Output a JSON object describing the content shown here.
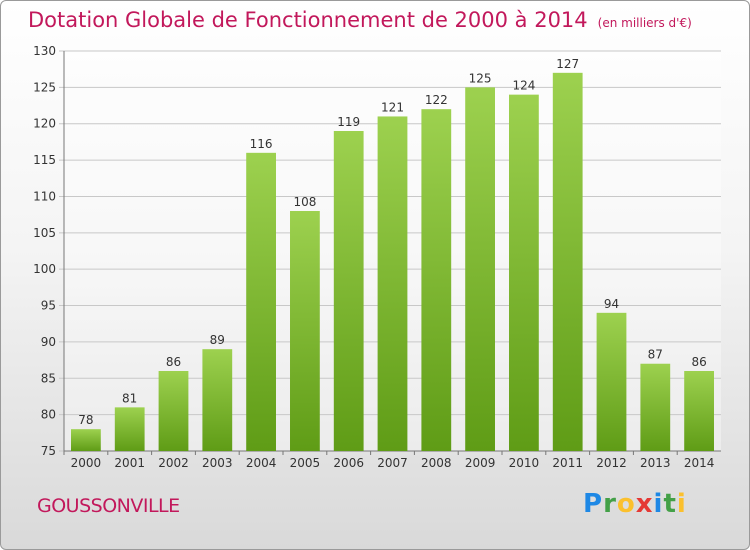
{
  "header": {
    "title": "Dotation Globale de Fonctionnement de 2000 à 2014",
    "unit": "(en milliers d'€)"
  },
  "footer": {
    "city": "GOUSSONVILLE",
    "brand": "Proxiti"
  },
  "brand_letters": [
    {
      "ch": "P",
      "color": "#1e88e5"
    },
    {
      "ch": "r",
      "color": "#43a047"
    },
    {
      "ch": "o",
      "color": "#fbc02d"
    },
    {
      "ch": "x",
      "color": "#e53935"
    },
    {
      "ch": "i",
      "color": "#1e88e5"
    },
    {
      "ch": "t",
      "color": "#43a047"
    },
    {
      "ch": "i",
      "color": "#fbc02d"
    }
  ],
  "colors": {
    "bar_top": "#9dd14f",
    "bar_bottom": "#5f9c16",
    "accent": "#c2185b"
  },
  "chart_data": {
    "type": "bar",
    "categories": [
      "2000",
      "2001",
      "2002",
      "2003",
      "2004",
      "2005",
      "2006",
      "2007",
      "2008",
      "2009",
      "2010",
      "2011",
      "2012",
      "2013",
      "2014"
    ],
    "values": [
      78,
      81,
      86,
      89,
      116,
      108,
      119,
      121,
      122,
      125,
      124,
      127,
      94,
      87,
      86
    ],
    "ylim": [
      75,
      130
    ],
    "yticks": [
      75,
      80,
      85,
      90,
      95,
      100,
      105,
      110,
      115,
      120,
      125,
      130
    ],
    "grid": true,
    "legend": "none"
  }
}
